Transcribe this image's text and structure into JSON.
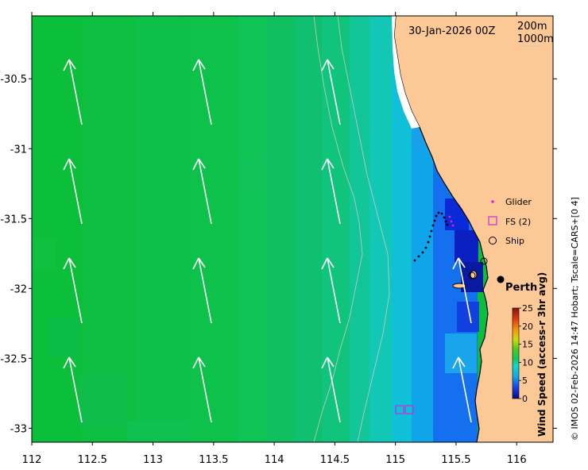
{
  "map": {
    "date_label": "30-Jan-2026 00Z",
    "isobath_label_1": "200m",
    "isobath_label_2": "1000m",
    "city_label": "Perth",
    "x_ticks": [
      "112",
      "112.5",
      "113",
      "113.5",
      "114",
      "114.5",
      "115",
      "115.5",
      "116"
    ],
    "y_ticks": [
      "-30.5",
      "-31",
      "-31.5",
      "-32",
      "-32.5",
      "-33"
    ],
    "lon_range": [
      112,
      116.3
    ],
    "lat_range": [
      -33.1,
      -30.05
    ]
  },
  "legend": {
    "glider": "Glider",
    "fs": "FS (2)",
    "ship": "Ship"
  },
  "colorbar": {
    "title": "Wind Speed (access-r 3hr avg)",
    "ticks": [
      "25",
      "20",
      "15",
      "10",
      "5",
      "0"
    ],
    "range": [
      0,
      25
    ]
  },
  "credit": "© IMOS 02-Feb-2026 14:47 Hobart; Tscale=CARS+[0 4]",
  "colors": {
    "land": "#FCC896",
    "arrow": "#ffffff",
    "glider": "#e020e0",
    "fs": "#c030e0",
    "track": "#000000"
  }
}
